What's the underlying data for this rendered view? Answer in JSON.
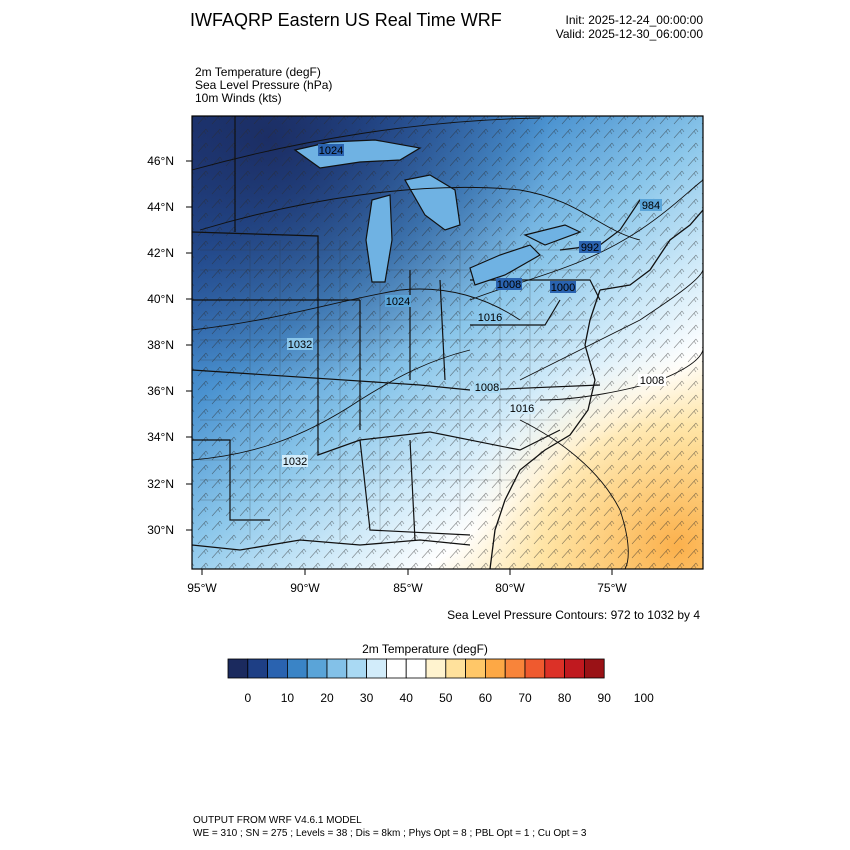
{
  "header": {
    "title": "IWFAQRP Eastern US Real Time WRF",
    "init": "Init: 2025-12-24_00:00:00",
    "valid": "Valid: 2025-12-30_06:00:00"
  },
  "fields": [
    "2m Temperature   (degF)",
    "Sea Level Pressure   (hPa)",
    "10m Winds   (kts)"
  ],
  "map": {
    "lat_labels": [
      "46°N",
      "44°N",
      "42°N",
      "40°N",
      "38°N",
      "36°N",
      "34°N",
      "32°N",
      "30°N"
    ],
    "lon_labels": [
      "95°W",
      "90°W",
      "85°W",
      "80°W",
      "75°W"
    ],
    "pressure_labels": [
      "1024",
      "1024",
      "1032",
      "1032",
      "1008",
      "1000",
      "992",
      "984",
      "1016",
      "1008",
      "1016",
      "1008"
    ],
    "contour_note": "Sea Level Pressure Contours: 972 to 1032 by 4"
  },
  "colorbar": {
    "title": "2m Temperature  (degF)",
    "colors": [
      "#1b2a5e",
      "#1e3f85",
      "#2a63b0",
      "#3a84c6",
      "#5aa4d8",
      "#83c1e8",
      "#a9d9f3",
      "#d2ecfa",
      "#ffffff",
      "#ffffff",
      "#fff3cf",
      "#ffe19c",
      "#ffc768",
      "#fda845",
      "#f8843a",
      "#ef5a2f",
      "#dc3127",
      "#c0191f",
      "#9a1216"
    ],
    "tick_labels": [
      "0",
      "10",
      "20",
      "30",
      "40",
      "50",
      "60",
      "70",
      "80",
      "90",
      "100"
    ]
  },
  "footer": {
    "line1": "OUTPUT FROM WRF V4.6.1 MODEL",
    "line2": "WE = 310 ; SN = 275 ; Levels = 38 ; Dis = 8km ; Phys Opt = 8 ; PBL Opt = 1 ; Cu Opt = 3"
  }
}
